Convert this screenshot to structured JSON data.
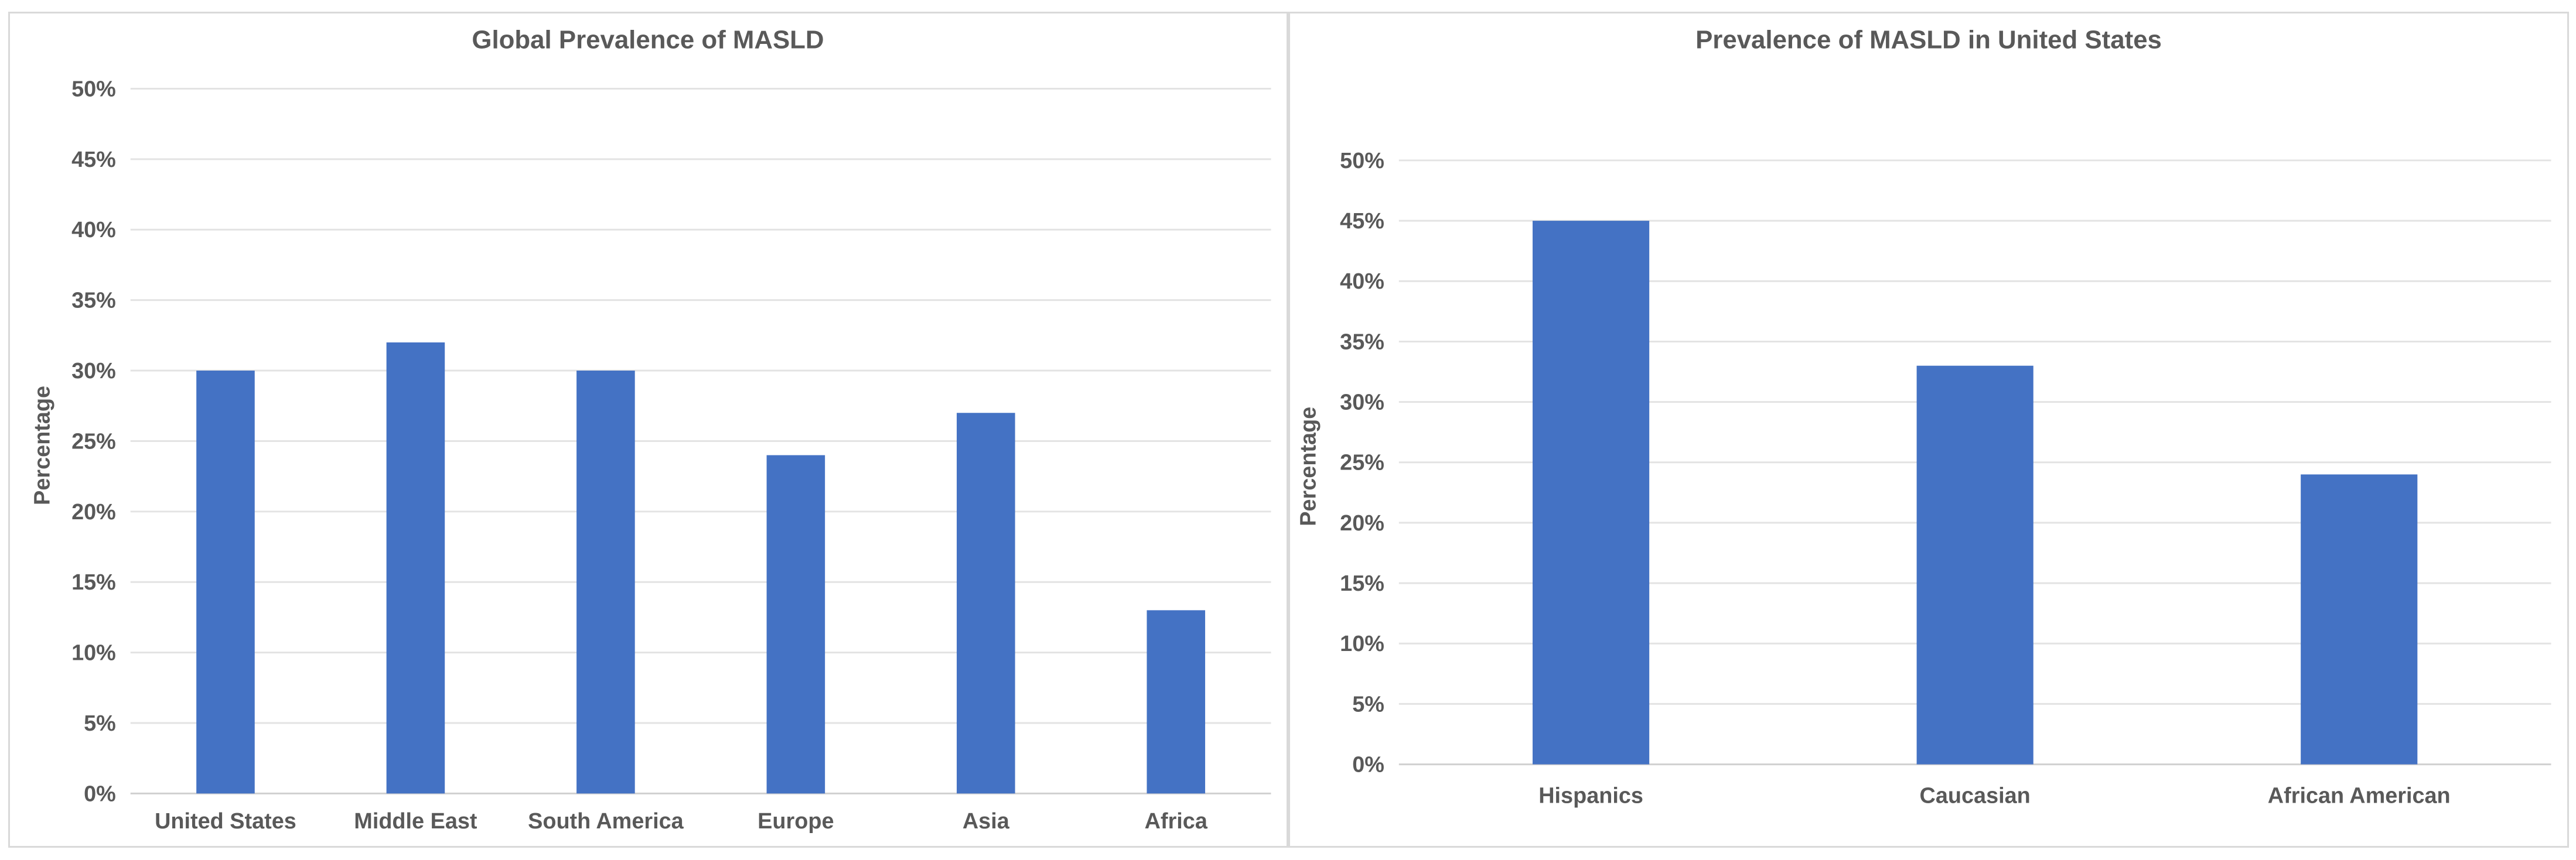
{
  "chart_data": [
    {
      "type": "bar",
      "title": "Global Prevalence of MASLD",
      "ylabel": "Percentage",
      "xlabel": "",
      "categories": [
        "United States",
        "Middle East",
        "South America",
        "Europe",
        "Asia",
        "Africa"
      ],
      "values": [
        30,
        32,
        30,
        24,
        27,
        13
      ],
      "ylim": [
        0,
        50
      ],
      "yticks": [
        "0%",
        "5%",
        "10%",
        "15%",
        "20%",
        "25%",
        "30%",
        "35%",
        "40%",
        "45%",
        "50%"
      ],
      "color": "#4472C4",
      "grid": true,
      "legend": "none"
    },
    {
      "type": "bar",
      "title": "Prevalence of MASLD in United States",
      "ylabel": "Percentage",
      "xlabel": "",
      "categories": [
        "Hispanics",
        "Caucasian",
        "African American"
      ],
      "values": [
        45,
        33,
        24
      ],
      "ylim": [
        0,
        50
      ],
      "yticks": [
        "0%",
        "5%",
        "10%",
        "15%",
        "20%",
        "25%",
        "30%",
        "35%",
        "40%",
        "45%",
        "50%"
      ],
      "color": "#4472C4",
      "grid": true,
      "legend": "none"
    }
  ]
}
